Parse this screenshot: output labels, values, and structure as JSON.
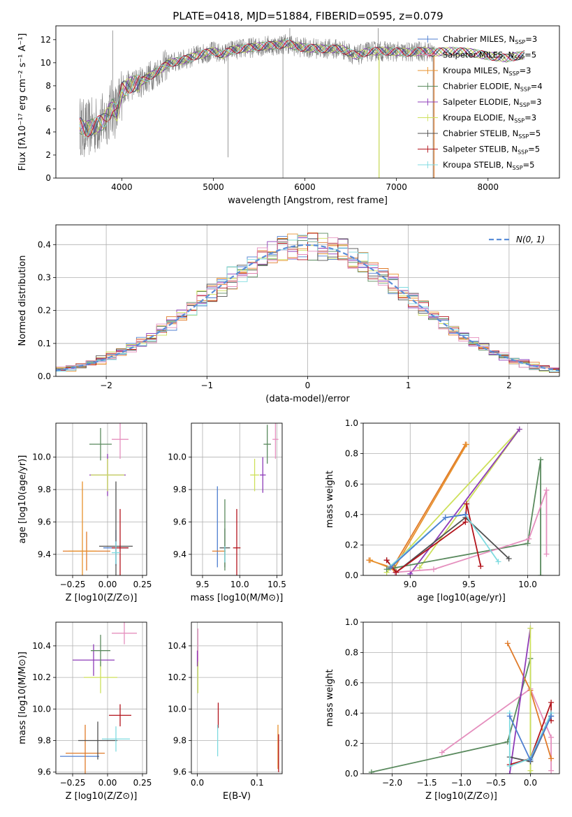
{
  "figure": {
    "title": "PLATE=0418, MJD=51884, FIBERID=0595, z=0.079",
    "colors": [
      "#4f7fd0",
      "#e07b2a",
      "#e8922d",
      "#5a8a5e",
      "#8e3cb8",
      "#cde05a",
      "#505050",
      "#b3141c",
      "#7fdbe0",
      "#e58fbe"
    ]
  },
  "chart_data": [
    {
      "id": "spectrum",
      "type": "line",
      "title": "PLATE=0418, MJD=51884, FIBERID=0595, z=0.079",
      "xlabel": "wavelength [Angstrom, rest frame]",
      "ylabel": "Flux [fλ10⁻¹⁷ erg cm⁻² s⁻¹ A⁻¹]",
      "xlim": [
        3280,
        8780
      ],
      "ylim": [
        0,
        13.2
      ],
      "xticks": [
        4000,
        5000,
        6000,
        7000,
        8000
      ],
      "yticks": [
        0,
        2,
        4,
        6,
        8,
        10,
        12
      ],
      "grid": false,
      "legend_position": "right",
      "data_series": {
        "name": "",
        "color": "#808080",
        "x_range": [
          3540,
          7420
        ]
      },
      "model_series": [
        {
          "name": "Chabrier MILES, N_SSP=3",
          "color": "#4f7fd0",
          "line": "pipe"
        },
        {
          "name": "Salpeter MILES, N_SSP=5",
          "color": "#e58fbe",
          "line": "pipe"
        },
        {
          "name": "Kroupa MILES, N_SSP=3",
          "color": "#e8922d",
          "line": "pipe"
        },
        {
          "name": "Chabrier ELODIE, N_SSP=4",
          "color": "#5a8a5e",
          "line": "pipe"
        },
        {
          "name": "Salpeter ELODIE, N_SSP=3",
          "color": "#8e3cb8",
          "line": "pipe"
        },
        {
          "name": "Kroupa ELODIE, N_SSP=3",
          "color": "#cde05a",
          "line": "pipe"
        },
        {
          "name": "Chabrier STELIB, N_SSP=5",
          "color": "#505050",
          "line": "pipe"
        },
        {
          "name": "Salpeter STELIB, N_SSP=5",
          "color": "#b3141c",
          "line": "pipe"
        },
        {
          "name": "Kroupa STELIB, N_SSP=5",
          "color": "#7fdbe0",
          "line": "pipe"
        }
      ],
      "continuum": [
        [
          3540,
          4.6
        ],
        [
          3600,
          4.2
        ],
        [
          3700,
          4.5
        ],
        [
          3800,
          4.9
        ],
        [
          3900,
          6.2
        ],
        [
          3950,
          5.6
        ],
        [
          4000,
          7.6
        ],
        [
          4100,
          8.1
        ],
        [
          4200,
          8.3
        ],
        [
          4300,
          8.8
        ],
        [
          4400,
          9.3
        ],
        [
          4500,
          9.9
        ],
        [
          4600,
          10.1
        ],
        [
          4700,
          10.3
        ],
        [
          4800,
          10.6
        ],
        [
          4900,
          10.8
        ],
        [
          5000,
          11.0
        ],
        [
          5100,
          10.7
        ],
        [
          5200,
          11.1
        ],
        [
          5300,
          11.2
        ],
        [
          5400,
          11.3
        ],
        [
          5500,
          11.4
        ],
        [
          5600,
          11.5
        ],
        [
          5700,
          11.5
        ],
        [
          5800,
          11.7
        ],
        [
          5900,
          11.4
        ],
        [
          6000,
          11.3
        ],
        [
          6200,
          11.2
        ],
        [
          6400,
          11.2
        ],
        [
          6563,
          10.6
        ],
        [
          6700,
          11.0
        ],
        [
          6900,
          11.0
        ],
        [
          7100,
          10.9
        ],
        [
          7300,
          11.0
        ],
        [
          7400,
          10.9
        ],
        [
          7600,
          11.0
        ],
        [
          7800,
          10.9
        ],
        [
          8000,
          10.6
        ],
        [
          8200,
          10.4
        ],
        [
          8400,
          10.7
        ]
      ],
      "spikes": [
        [
          3570,
          2.0
        ],
        [
          3900,
          12.8
        ],
        [
          5161,
          1.8
        ],
        [
          5760,
          0
        ],
        [
          5835,
          13.0
        ],
        [
          6800,
          13.0
        ],
        [
          6810,
          0
        ],
        [
          7400,
          0
        ]
      ]
    },
    {
      "id": "residuals",
      "type": "line",
      "xlabel": "(data-model)/error",
      "ylabel": "Normed distribution",
      "xlim": [
        -2.5,
        2.5
      ],
      "ylim": [
        0,
        0.46
      ],
      "xticks": [
        -2,
        -1,
        0,
        1,
        2
      ],
      "yticks": [
        0.0,
        0.1,
        0.2,
        0.3,
        0.4
      ],
      "grid": true,
      "legend_position": "top-right",
      "legend": [
        {
          "name": "N(0, 1)",
          "color": "#5b8ed8",
          "dashed": true
        }
      ]
    },
    {
      "id": "age-vs-Z",
      "type": "scatter",
      "xlabel": "Z [log10(Z/Z⊙)]",
      "ylabel": "age  [log10(age/yr)]",
      "xlim": [
        -0.37,
        0.28
      ],
      "ylim": [
        9.27,
        10.21
      ],
      "xticks": [
        -0.25,
        0.0,
        0.25
      ],
      "yticks": [
        9.4,
        9.6,
        9.8,
        10.0
      ],
      "grid": true,
      "points": [
        {
          "x": -0.15,
          "y": 9.42,
          "xerr": 0.17,
          "yerr": 0.12,
          "color": "#e07b2a"
        },
        {
          "x": -0.18,
          "y": 9.42,
          "xerr": 0.1,
          "yerr": 0.43,
          "color": "#e8922d"
        },
        {
          "x": 0.06,
          "y": 9.44,
          "xerr": 0.09,
          "yerr": 0.11,
          "color": "#4f7fd0"
        },
        {
          "x": 0.06,
          "y": 9.45,
          "xerr": 0.12,
          "yerr": 0.4,
          "color": "#505050"
        },
        {
          "x": 0.09,
          "y": 9.44,
          "xerr": 0.06,
          "yerr": 0.24,
          "color": "#b3141c"
        },
        {
          "x": 0.06,
          "y": 9.41,
          "xerr": 0.03,
          "yerr": 0.07,
          "color": "#7fdbe0"
        },
        {
          "x": 0.0,
          "y": 9.89,
          "xerr": 0.13,
          "yerr": 0.13,
          "color": "#8e3cb8"
        },
        {
          "x": 0.0,
          "y": 9.89,
          "xerr": 0.12,
          "yerr": 0.1,
          "color": "#cde05a"
        },
        {
          "x": -0.05,
          "y": 10.08,
          "xerr": 0.08,
          "yerr": 0.1,
          "color": "#5a8a5e"
        },
        {
          "x": 0.09,
          "y": 10.11,
          "xerr": 0.06,
          "yerr": 0.12,
          "color": "#e58fbe"
        }
      ]
    },
    {
      "id": "age-vs-mass",
      "type": "scatter",
      "xlabel": "mass [log10(M/M⊙)]",
      "ylabel": "",
      "xlim": [
        9.35,
        10.57
      ],
      "ylim": [
        9.27,
        10.21
      ],
      "xticks": [
        9.5,
        10.0,
        10.5
      ],
      "yticks": [
        9.4,
        9.6,
        9.8,
        10.0
      ],
      "grid": true,
      "points": [
        {
          "x": 9.7,
          "y": 9.57,
          "xerr": 0.0,
          "yerr": 0.25,
          "color": "#4f7fd0"
        },
        {
          "x": 9.72,
          "y": 9.42,
          "xerr": 0.09,
          "yerr": 0.0,
          "color": "#e07b2a"
        },
        {
          "x": 9.8,
          "y": 9.44,
          "xerr": 0.07,
          "yerr": 0.12,
          "color": "#505050"
        },
        {
          "x": 9.8,
          "y": 9.52,
          "xerr": 0.0,
          "yerr": 0.22,
          "color": "#5a8a5e"
        },
        {
          "x": 9.96,
          "y": 9.44,
          "xerr": 0.05,
          "yerr": 0.24,
          "color": "#b3141c"
        },
        {
          "x": 9.8,
          "y": 9.4,
          "xerr": 0.0,
          "yerr": 0.05,
          "color": "#7fdbe0"
        },
        {
          "x": 10.31,
          "y": 9.89,
          "xerr": 0.04,
          "yerr": 0.11,
          "color": "#8e3cb8"
        },
        {
          "x": 10.2,
          "y": 9.89,
          "xerr": 0.06,
          "yerr": 0.1,
          "color": "#cde05a"
        },
        {
          "x": 10.37,
          "y": 10.08,
          "xerr": 0.05,
          "yerr": 0.12,
          "color": "#5a8a5e"
        },
        {
          "x": 10.48,
          "y": 10.11,
          "xerr": 0.04,
          "yerr": 0.12,
          "color": "#e58fbe"
        }
      ]
    },
    {
      "id": "weight-vs-age",
      "type": "line",
      "xlabel": "age  [log10(age/yr)]",
      "ylabel": "mass weight",
      "xlim": [
        8.6,
        10.27
      ],
      "ylim": [
        0,
        1.0
      ],
      "xticks": [
        9.0,
        9.5,
        10.0
      ],
      "yticks": [
        0.0,
        0.2,
        0.4,
        0.6,
        0.8,
        1.0
      ],
      "grid": true,
      "series": [
        {
          "color": "#e07b2a",
          "points": [
            [
              8.65,
              0.1
            ],
            [
              8.85,
              0.05
            ],
            [
              9.47,
              0.86
            ]
          ]
        },
        {
          "color": "#e8922d",
          "points": [
            [
              8.66,
              0.1
            ],
            [
              8.86,
              0.04
            ],
            [
              9.48,
              0.86
            ]
          ]
        },
        {
          "color": "#cde05a",
          "points": [
            [
              8.8,
              0.02
            ],
            [
              9.93,
              0.96
            ],
            [
              9.08,
              0.05
            ]
          ]
        },
        {
          "color": "#8e3cb8",
          "points": [
            [
              9.0,
              0.01
            ],
            [
              9.93,
              0.96
            ]
          ]
        },
        {
          "color": "#5a8a5e",
          "points": [
            [
              8.8,
              0.04
            ],
            [
              8.87,
              0.05
            ],
            [
              10.0,
              0.21
            ],
            [
              10.11,
              0.76
            ],
            [
              10.11,
              0.0
            ]
          ]
        },
        {
          "color": "#e58fbe",
          "points": [
            [
              8.87,
              0.02
            ],
            [
              9.2,
              0.04
            ],
            [
              10.01,
              0.24
            ],
            [
              10.16,
              0.56
            ],
            [
              10.16,
              0.14
            ]
          ]
        },
        {
          "color": "#505050",
          "points": [
            [
              8.8,
              0.1
            ],
            [
              8.88,
              0.02
            ],
            [
              9.47,
              0.38
            ],
            [
              9.84,
              0.11
            ]
          ]
        },
        {
          "color": "#b3141c",
          "points": [
            [
              8.8,
              0.1
            ],
            [
              8.88,
              0.02
            ],
            [
              9.47,
              0.35
            ],
            [
              9.48,
              0.47
            ],
            [
              9.6,
              0.06
            ]
          ]
        },
        {
          "color": "#7fdbe0",
          "points": [
            [
              8.83,
              0.06
            ],
            [
              9.3,
              0.38
            ],
            [
              9.47,
              0.4
            ],
            [
              9.75,
              0.09
            ]
          ]
        },
        {
          "color": "#4f7fd0",
          "points": [
            [
              8.83,
              0.05
            ],
            [
              9.3,
              0.38
            ],
            [
              9.47,
              0.4
            ]
          ]
        }
      ]
    },
    {
      "id": "mass-vs-Z",
      "type": "scatter",
      "xlabel": "Z [log10(Z/Z⊙)]",
      "ylabel": "mass [log10(M/M⊙)]",
      "xlim": [
        -0.37,
        0.28
      ],
      "ylim": [
        9.59,
        10.55
      ],
      "xticks": [
        -0.25,
        0.0,
        0.25
      ],
      "yticks": [
        9.6,
        9.8,
        10.0,
        10.2,
        10.4
      ],
      "grid": true,
      "points": [
        {
          "x": -0.2,
          "y": 9.7,
          "xerr": 0.14,
          "yerr": 0.0,
          "color": "#4f7fd0"
        },
        {
          "x": -0.16,
          "y": 9.72,
          "xerr": 0.14,
          "yerr": 0.18,
          "color": "#e07b2a"
        },
        {
          "x": -0.07,
          "y": 9.8,
          "xerr": 0.14,
          "yerr": 0.12,
          "color": "#505050"
        },
        {
          "x": 0.06,
          "y": 9.81,
          "xerr": 0.1,
          "yerr": 0.08,
          "color": "#7fdbe0"
        },
        {
          "x": 0.09,
          "y": 9.96,
          "xerr": 0.08,
          "yerr": 0.07,
          "color": "#b3141c"
        },
        {
          "x": -0.1,
          "y": 10.31,
          "xerr": 0.15,
          "yerr": 0.1,
          "color": "#8e3cb8"
        },
        {
          "x": -0.05,
          "y": 10.2,
          "xerr": 0.12,
          "yerr": 0.1,
          "color": "#cde05a"
        },
        {
          "x": -0.05,
          "y": 10.37,
          "xerr": 0.07,
          "yerr": 0.1,
          "color": "#5a8a5e"
        },
        {
          "x": 0.12,
          "y": 10.48,
          "xerr": 0.09,
          "yerr": 0.07,
          "color": "#e58fbe"
        }
      ]
    },
    {
      "id": "mass-vs-EBV",
      "type": "scatter",
      "xlabel": "E(B-V)",
      "ylabel": "",
      "xlim": [
        -0.01,
        0.142
      ],
      "ylim": [
        9.59,
        10.55
      ],
      "xticks": [
        0.0,
        0.1
      ],
      "yticks": [
        9.6,
        9.8,
        10.0,
        10.2,
        10.4
      ],
      "grid": true,
      "points": [
        {
          "x": 0.001,
          "y": 10.4,
          "xerr": 0.0,
          "yerr": 0.11,
          "color": "#e58fbe"
        },
        {
          "x": 0.001,
          "y": 10.2,
          "xerr": 0.0,
          "yerr": 0.1,
          "color": "#cde05a"
        },
        {
          "x": 0.0,
          "y": 10.32,
          "xerr": 0.0,
          "yerr": 0.05,
          "color": "#8e3cb8"
        },
        {
          "x": 0.035,
          "y": 9.96,
          "xerr": 0.0,
          "yerr": 0.08,
          "color": "#b3141c"
        },
        {
          "x": 0.034,
          "y": 9.8,
          "xerr": 0.0,
          "yerr": 0.1,
          "color": "#7fdbe0"
        },
        {
          "x": 0.135,
          "y": 9.76,
          "xerr": 0.0,
          "yerr": 0.14,
          "color": "#e8922d"
        },
        {
          "x": 0.136,
          "y": 9.72,
          "xerr": 0.0,
          "yerr": 0.12,
          "color": "#b3141c"
        }
      ]
    },
    {
      "id": "weight-vs-Z",
      "type": "line",
      "xlabel": "Z [log10(Z/Z⊙)]",
      "ylabel": "mass weight",
      "xlim": [
        -2.42,
        0.42
      ],
      "ylim": [
        0,
        1.0
      ],
      "xticks": [
        -2.0,
        -1.5,
        -1.0,
        -0.5,
        0.0
      ],
      "yticks": [
        0.0,
        0.2,
        0.4,
        0.6,
        0.8,
        1.0
      ],
      "grid": true,
      "series": [
        {
          "color": "#5a8a5e",
          "points": [
            [
              -2.3,
              0.01
            ],
            [
              -0.33,
              0.21
            ],
            [
              0.0,
              0.76
            ],
            [
              0.0,
              0.0
            ]
          ]
        },
        {
          "color": "#e58fbe",
          "points": [
            [
              -1.28,
              0.14
            ],
            [
              0.0,
              0.56
            ],
            [
              0.3,
              0.24
            ],
            [
              0.3,
              0.02
            ]
          ]
        },
        {
          "color": "#e07b2a",
          "points": [
            [
              -0.33,
              0.86
            ],
            [
              0.0,
              0.55
            ],
            [
              0.3,
              0.1
            ]
          ]
        },
        {
          "color": "#8e3cb8",
          "points": [
            [
              0.0,
              0.96
            ],
            [
              -0.3,
              0.0
            ]
          ]
        },
        {
          "color": "#cde05a",
          "points": [
            [
              0.0,
              0.96
            ],
            [
              0.0,
              0.02
            ]
          ]
        },
        {
          "color": "#b3141c",
          "points": [
            [
              -0.3,
              0.06
            ],
            [
              0.0,
              0.1
            ],
            [
              0.3,
              0.47
            ],
            [
              0.3,
              0.35
            ]
          ]
        },
        {
          "color": "#505050",
          "points": [
            [
              -0.3,
              0.11
            ],
            [
              0.0,
              0.08
            ],
            [
              0.3,
              0.38
            ]
          ]
        },
        {
          "color": "#7fdbe0",
          "points": [
            [
              -0.3,
              0.4
            ],
            [
              -0.3,
              0.05
            ],
            [
              0.0,
              0.1
            ],
            [
              0.3,
              0.4
            ]
          ]
        },
        {
          "color": "#4f7fd0",
          "points": [
            [
              -0.3,
              0.38
            ],
            [
              0.0,
              0.09
            ],
            [
              0.3,
              0.38
            ]
          ]
        }
      ]
    }
  ]
}
